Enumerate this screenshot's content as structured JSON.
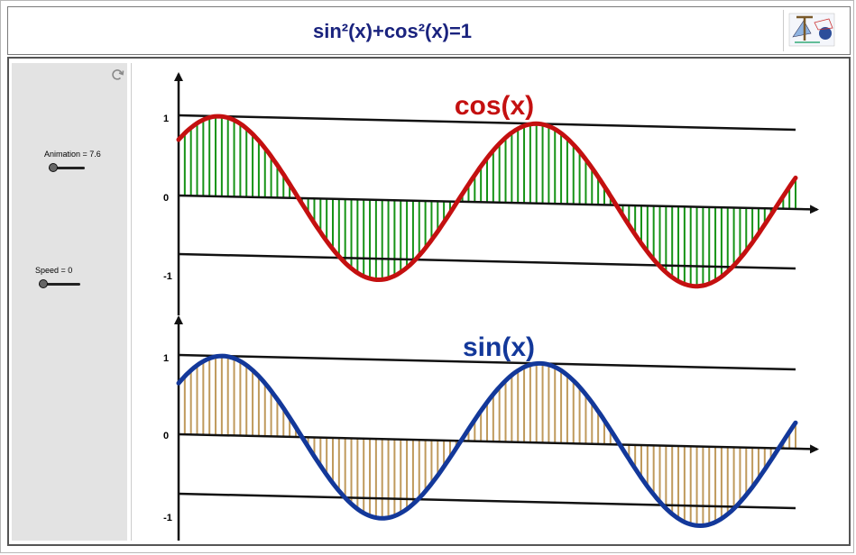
{
  "header": {
    "title": "sin²(x)+cos²(x)=1"
  },
  "sidebar": {
    "animation_label": "Animation = 7.6",
    "speed_label": "Speed = 0",
    "animation_value": 7.6,
    "speed_value": 0
  },
  "colors": {
    "cos_curve": "#c41010",
    "cos_bars": "#169316",
    "sin_curve": "#13389a",
    "sin_bars": "#bf9a5c",
    "axes": "#111111",
    "title": "#1a237e"
  },
  "icons": {
    "reset": "reset-icon",
    "logo": "logo-icon"
  },
  "chart_data": [
    {
      "type": "line",
      "title": "cos(x)",
      "series": [
        {
          "name": "cos(x)",
          "function": "cos(x)",
          "x_range": [
            -0.8,
            11.4
          ]
        }
      ],
      "bars": "vertical segments from 0 to cos(x)",
      "ytick_labels": [
        "1",
        "0",
        "-1"
      ],
      "yticks": [
        1,
        0,
        -1
      ],
      "ylim": [
        -1.25,
        1.3
      ]
    },
    {
      "type": "line",
      "title": "sin(x)",
      "series": [
        {
          "name": "sin(x)",
          "function": "sin(x)",
          "x_range": [
            0.7,
            12.9
          ]
        }
      ],
      "bars": "vertical segments from 0 to sin(x)",
      "ytick_labels": [
        "1",
        "0",
        "-1"
      ],
      "yticks": [
        1,
        0,
        -1
      ],
      "ylim": [
        -1.25,
        1.3
      ]
    }
  ]
}
